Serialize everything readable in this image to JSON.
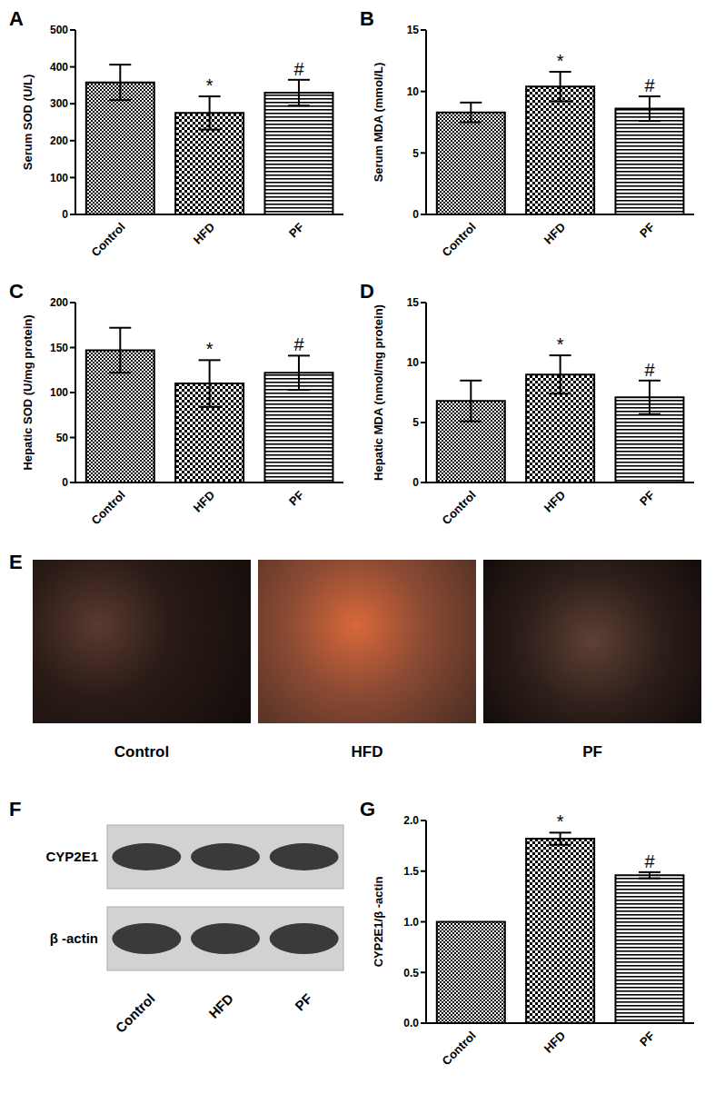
{
  "chart_data": [
    {
      "type": "bar",
      "label": "A",
      "y_label": "Serum SOD (U/L)",
      "categories": [
        "Control",
        "HFD",
        "PF"
      ],
      "values": [
        358,
        275,
        330
      ],
      "errors": [
        48,
        45,
        35
      ],
      "annotations": [
        null,
        "*",
        "#"
      ],
      "color": "#000000",
      "ylim": [
        0,
        500
      ],
      "yticks": [
        0,
        100,
        200,
        300,
        400,
        500
      ]
    },
    {
      "type": "bar",
      "label": "B",
      "y_label": "Serum MDA (mmol/L)",
      "categories": [
        "Control",
        "HFD",
        "PF"
      ],
      "values": [
        8.3,
        10.4,
        8.6
      ],
      "errors": [
        0.8,
        1.2,
        1.0
      ],
      "annotations": [
        null,
        "*",
        "#"
      ],
      "color": "#000000",
      "ylim": [
        0,
        15
      ],
      "yticks": [
        0,
        5,
        10,
        15
      ]
    },
    {
      "type": "bar",
      "label": "C",
      "y_label": "Hepatic SOD (U/mg protein)",
      "categories": [
        "Control",
        "HFD",
        "PF"
      ],
      "values": [
        147,
        110,
        122
      ],
      "errors": [
        25,
        26,
        19
      ],
      "annotations": [
        null,
        "*",
        "#"
      ],
      "color": "#000000",
      "ylim": [
        0,
        200
      ],
      "yticks": [
        0,
        50,
        100,
        150,
        200
      ]
    },
    {
      "type": "bar",
      "label": "D",
      "y_label": "Hepatic MDA (nmol/mg protein)",
      "categories": [
        "Control",
        "HFD",
        "PF"
      ],
      "values": [
        6.8,
        9.0,
        7.1
      ],
      "errors": [
        1.7,
        1.6,
        1.4
      ],
      "annotations": [
        null,
        "*",
        "#"
      ],
      "color": "#000000",
      "ylim": [
        0,
        15
      ],
      "yticks": [
        0,
        5,
        10,
        15
      ]
    },
    {
      "type": "image",
      "label": "E",
      "categories": [
        "Control",
        "HFD",
        "PF"
      ]
    },
    {
      "type": "blot",
      "label": "F",
      "rows": [
        "CYP2E1",
        "β -actin"
      ],
      "categories": [
        "Control",
        "HFD",
        "PF"
      ]
    },
    {
      "type": "bar",
      "label": "G",
      "y_label": "CYP2E1/β -actin",
      "categories": [
        "Control",
        "HFD",
        "PF"
      ],
      "values": [
        1.0,
        1.82,
        1.46
      ],
      "errors": [
        0,
        0.06,
        0.03
      ],
      "annotations": [
        null,
        "*",
        "#"
      ],
      "color": "#000000",
      "ylim": [
        0,
        2.0
      ],
      "yticks": [
        {
          "value": 0,
          "label": "0.0"
        },
        {
          "value": 0.5,
          "label": "0.5"
        },
        {
          "value": 1.0,
          "label": "1.0"
        },
        {
          "value": 1.5,
          "label": "1.5"
        },
        {
          "value": 2.0,
          "label": "2.0"
        }
      ]
    }
  ]
}
